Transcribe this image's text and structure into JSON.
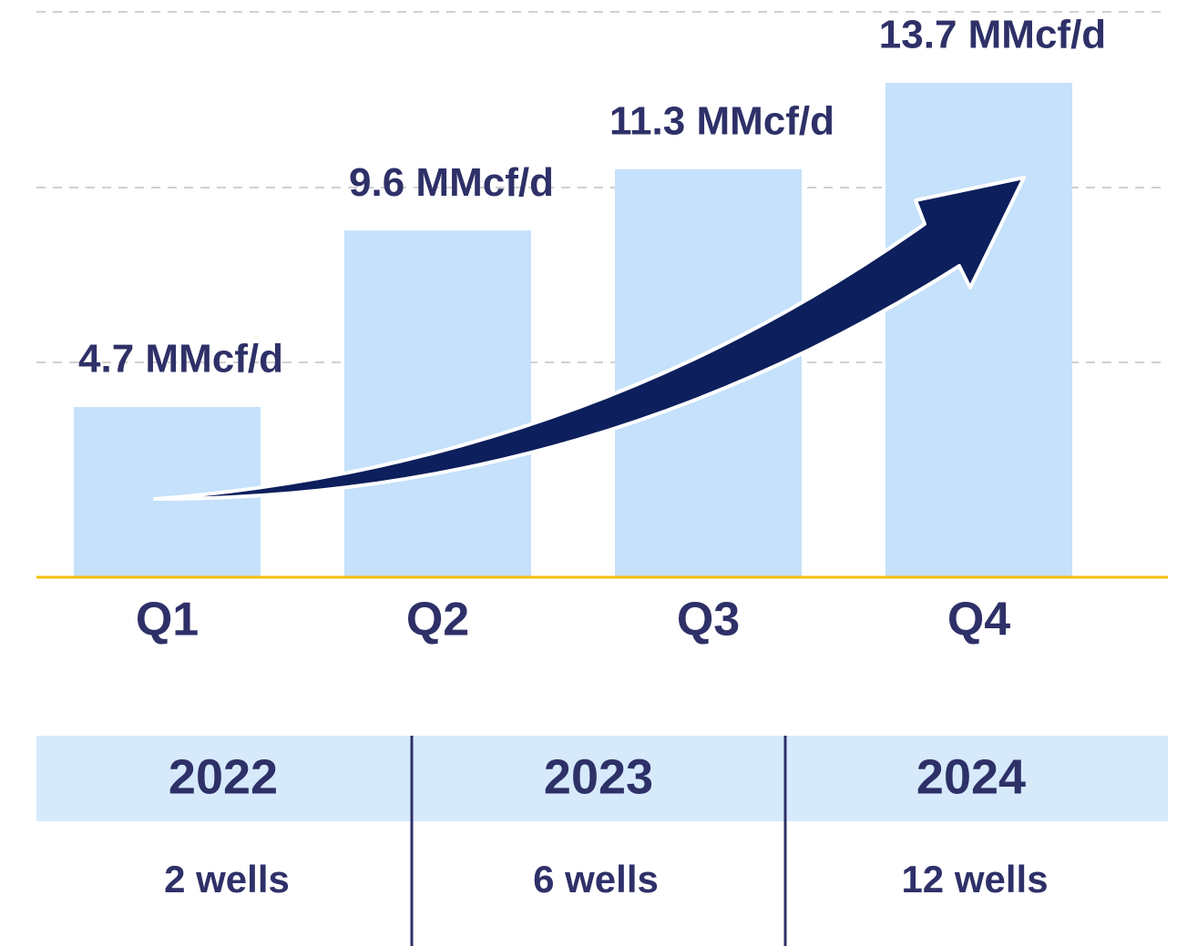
{
  "chart_data": {
    "type": "bar",
    "categories": [
      "Q1",
      "Q2",
      "Q3",
      "Q4"
    ],
    "values": [
      4.7,
      9.6,
      11.3,
      13.7
    ],
    "value_labels": [
      "4.7 MMcf/d",
      "9.6 MMcf/d",
      "11.3 MMcf/d",
      "13.7 MMcf/d"
    ],
    "color": "#c5e1fb",
    "ylim": [
      0,
      16
    ]
  },
  "table": {
    "headers": [
      "2022",
      "2023",
      "2024"
    ],
    "rows": [
      [
        "2 wells",
        "6 wells",
        "12 wells"
      ]
    ]
  }
}
